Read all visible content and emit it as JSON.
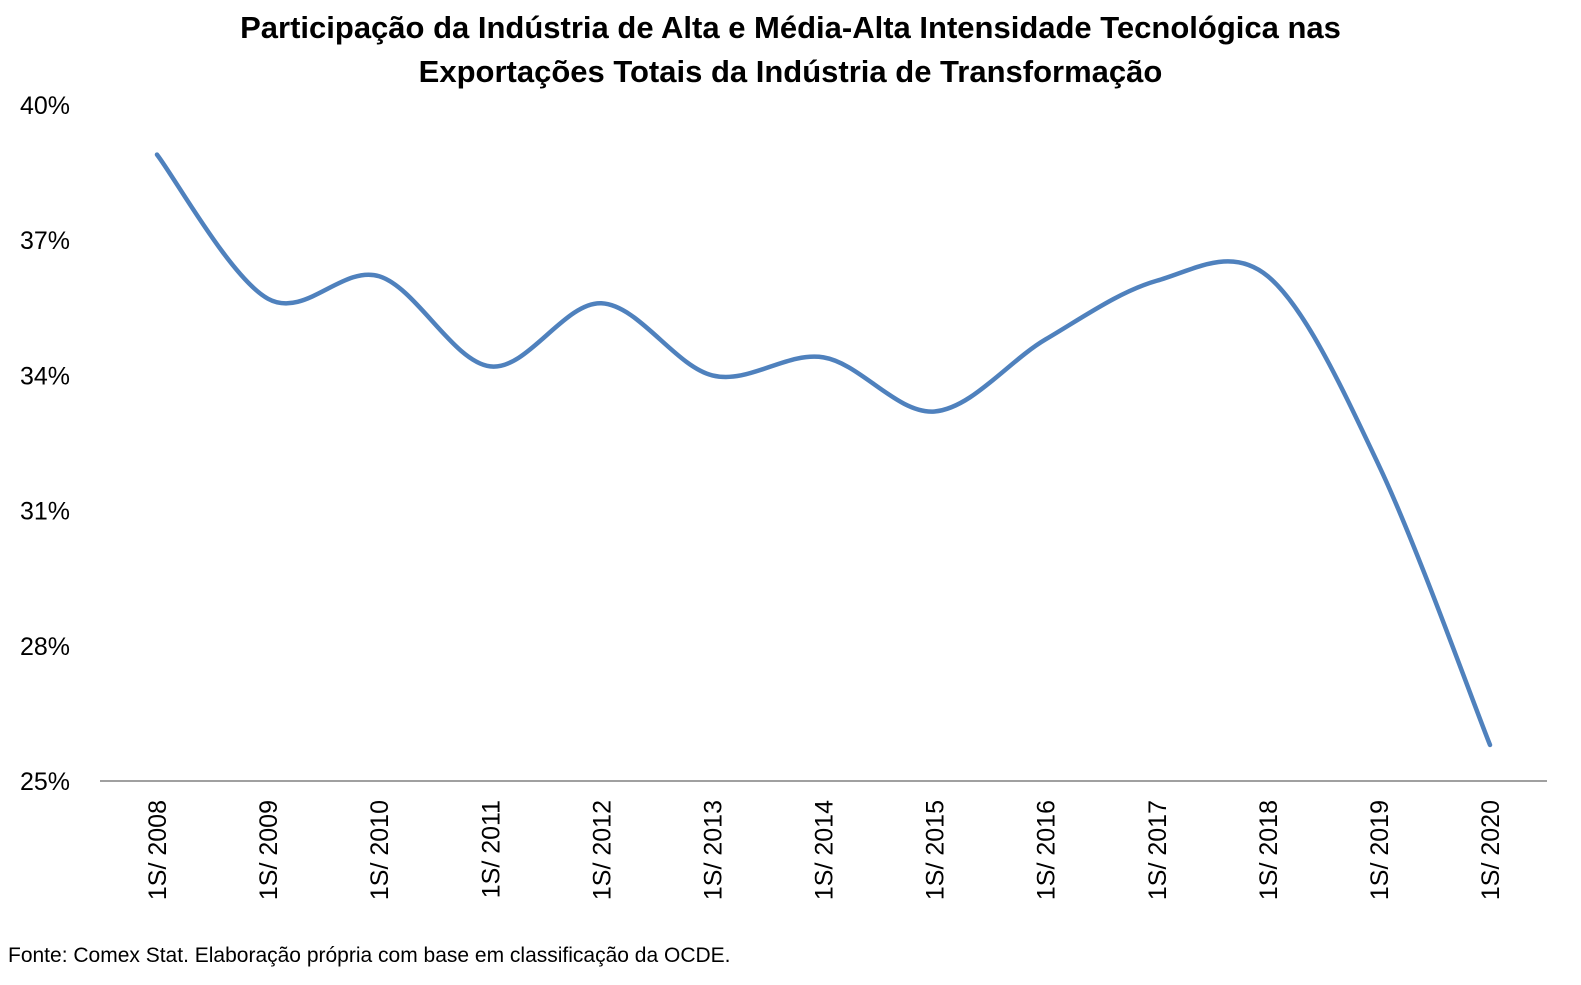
{
  "chart_data": {
    "type": "line",
    "title_lines": [
      "Participação da Indústria de Alta e Média-Alta Intensidade Tecnológica nas",
      "Exportações Totais da Indústria de Transformação"
    ],
    "xlabel": "",
    "ylabel": "",
    "categories": [
      "1S/ 2008",
      "1S/ 2009",
      "1S/ 2010",
      "1S/ 2011",
      "1S/ 2012",
      "1S/ 2013",
      "1S/ 2014",
      "1S/ 2015",
      "1S/ 2016",
      "1S/ 2017",
      "1S/ 2018",
      "1S/ 2019",
      "1S/ 2020"
    ],
    "series": [
      {
        "values": [
          38.9,
          35.7,
          36.2,
          34.2,
          35.6,
          34.0,
          34.4,
          33.2,
          34.8,
          36.1,
          36.2,
          32.0,
          25.8
        ],
        "color": "#4F81BD"
      }
    ],
    "ylim": [
      25,
      40
    ],
    "yticks": [
      "25%",
      "28%",
      "31%",
      "34%",
      "37%",
      "40%"
    ],
    "ytick_values": [
      25,
      28,
      31,
      34,
      37,
      40
    ],
    "grid": false,
    "legend": "none",
    "smooth": true
  },
  "source_note": "Fonte: Comex Stat. Elaboração própria com base em classificação da OCDE."
}
